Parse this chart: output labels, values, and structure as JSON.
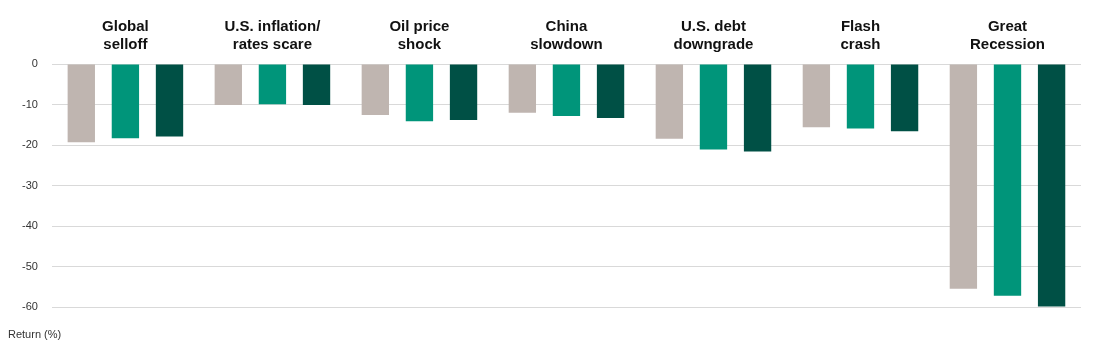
{
  "chart_data": {
    "type": "bar",
    "categories": [
      "Global selloff",
      "U.S. inflation/ rates scare",
      "Oil price shock",
      "China slowdown",
      "U.S. debt downgrade",
      "Flash crash",
      "Great Recession"
    ],
    "series": [
      {
        "color": "#bfb5b0",
        "values": [
          -19.3,
          -10.1,
          -12.6,
          -12,
          -18.4,
          -15.6,
          -55.4
        ]
      },
      {
        "color": "#00957a",
        "values": [
          -18.3,
          -9.9,
          -14.1,
          -12.8,
          -21.1,
          -15.9,
          -57.1
        ]
      },
      {
        "color": "#005045",
        "values": [
          -17.9,
          -10.1,
          -13.8,
          -13.3,
          -21.6,
          -16.6,
          -59.8
        ]
      }
    ],
    "ylabel": "Return (%)",
    "ylim": [
      -60,
      0
    ],
    "yticks": [
      -60,
      -50,
      -40,
      -30,
      -20,
      -10,
      0
    ],
    "grid": "y",
    "legend": false
  }
}
